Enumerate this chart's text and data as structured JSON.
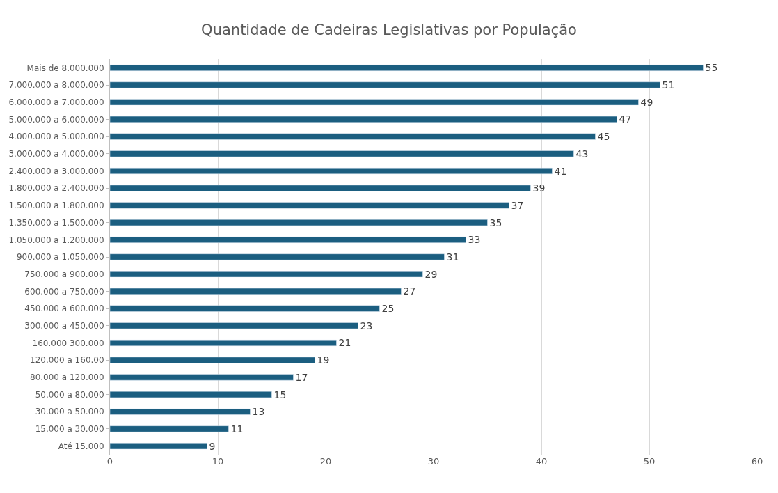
{
  "chart_data": {
    "type": "bar",
    "orientation": "horizontal",
    "title": "Quantidade de Cadeiras Legislativas por População",
    "categories": [
      "Mais de 8.000.000",
      "7.000.000 a 8.000.000",
      "6.000.000 a 7.000.000",
      "5.000.000 a 6.000.000",
      "4.000.000 a 5.000.000",
      "3.000.000 a 4.000.000",
      "2.400.000 a 3.000.000",
      "1.800.000 a 2.400.000",
      "1.500.000 a 1.800.000",
      "1.350.000 a 1.500.000",
      "1.050.000 a 1.200.000",
      "900.000 a 1.050.000",
      "750.000 a 900.000",
      "600.000 a 750.000",
      "450.000 a 600.000",
      "300.000 a 450.000",
      "160.000 300.000",
      "120.000 a 160.00",
      "80.000 a 120.000",
      "50.000 a 80.000",
      "30.000 a 50.000",
      "15.000 a 30.000",
      "Até 15.000"
    ],
    "values": [
      55,
      51,
      49,
      47,
      45,
      43,
      41,
      39,
      37,
      35,
      33,
      31,
      29,
      27,
      25,
      23,
      21,
      19,
      17,
      15,
      13,
      11,
      9
    ],
    "color": "#1b5e80",
    "data_labels": true,
    "xlim": [
      0,
      60
    ],
    "xticks": [
      0,
      10,
      20,
      30,
      40,
      50,
      60
    ],
    "grid": "x"
  }
}
